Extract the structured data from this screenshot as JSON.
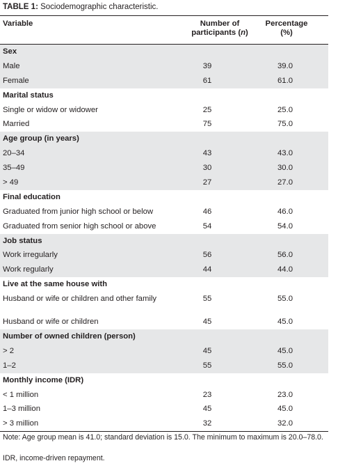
{
  "title": {
    "label": "TABLE 1:",
    "text": "Sociodemographic characteristic."
  },
  "columns": [
    "Variable",
    "Number of participants (n)",
    "Percentage (%)"
  ],
  "rows": [
    {
      "type": "group",
      "shade": true,
      "label": "Sex",
      "n": "",
      "pct": ""
    },
    {
      "type": "item",
      "shade": true,
      "label": "Male",
      "n": "39",
      "pct": "39.0"
    },
    {
      "type": "item",
      "shade": true,
      "label": "Female",
      "n": "61",
      "pct": "61.0"
    },
    {
      "type": "group",
      "shade": false,
      "label": "Marital status",
      "n": "",
      "pct": ""
    },
    {
      "type": "item",
      "shade": false,
      "label": "Single or widow or widower",
      "n": "25",
      "pct": "25.0"
    },
    {
      "type": "item",
      "shade": false,
      "label": "Married",
      "n": "75",
      "pct": "75.0"
    },
    {
      "type": "group",
      "shade": true,
      "label": "Age group (in years)",
      "n": "",
      "pct": ""
    },
    {
      "type": "item",
      "shade": true,
      "label": "20–34",
      "n": "43",
      "pct": "43.0"
    },
    {
      "type": "item",
      "shade": true,
      "label": "35–49",
      "n": "30",
      "pct": "30.0"
    },
    {
      "type": "item",
      "shade": true,
      "label": "> 49",
      "n": "27",
      "pct": "27.0"
    },
    {
      "type": "group",
      "shade": false,
      "label": "Final education",
      "n": "",
      "pct": ""
    },
    {
      "type": "item",
      "shade": false,
      "label": "Graduated from junior high school or below",
      "n": "46",
      "pct": "46.0"
    },
    {
      "type": "item",
      "shade": false,
      "label": "Graduated from senior high school or above",
      "n": "54",
      "pct": "54.0"
    },
    {
      "type": "group",
      "shade": true,
      "label": "Job status",
      "n": "",
      "pct": ""
    },
    {
      "type": "item",
      "shade": true,
      "label": "Work irregularly",
      "n": "56",
      "pct": "56.0"
    },
    {
      "type": "item",
      "shade": true,
      "label": "Work regularly",
      "n": "44",
      "pct": "44.0"
    },
    {
      "type": "group",
      "shade": false,
      "label": "Live at the same house with",
      "n": "",
      "pct": ""
    },
    {
      "type": "item",
      "shade": false,
      "tall": true,
      "label": "Husband or wife or children and other family",
      "n": "55",
      "pct": "55.0"
    },
    {
      "type": "item",
      "shade": false,
      "label": "Husband or wife or children",
      "n": "45",
      "pct": "45.0"
    },
    {
      "type": "group",
      "shade": true,
      "label": "Number of owned children (person)",
      "n": "",
      "pct": ""
    },
    {
      "type": "item",
      "shade": true,
      "label": "> 2",
      "n": "45",
      "pct": "45.0"
    },
    {
      "type": "item",
      "shade": true,
      "label": "1–2",
      "n": "55",
      "pct": "55.0"
    },
    {
      "type": "group",
      "shade": false,
      "label": "Monthly income (IDR)",
      "n": "",
      "pct": ""
    },
    {
      "type": "item",
      "shade": false,
      "label": "< 1 million",
      "n": "23",
      "pct": "23.0"
    },
    {
      "type": "item",
      "shade": false,
      "label": "1–3 million",
      "n": "45",
      "pct": "45.0"
    },
    {
      "type": "item",
      "shade": false,
      "label": "> 3 million",
      "n": "32",
      "pct": "32.0"
    }
  ],
  "notes": [
    "Note: Age group mean is 41.0; standard deviation is 15.0. The minimum to maximum is 20.0–78.0.",
    "IDR, income-driven repayment."
  ],
  "colors": {
    "shade": "#e6e7e8",
    "text": "#231f20"
  }
}
